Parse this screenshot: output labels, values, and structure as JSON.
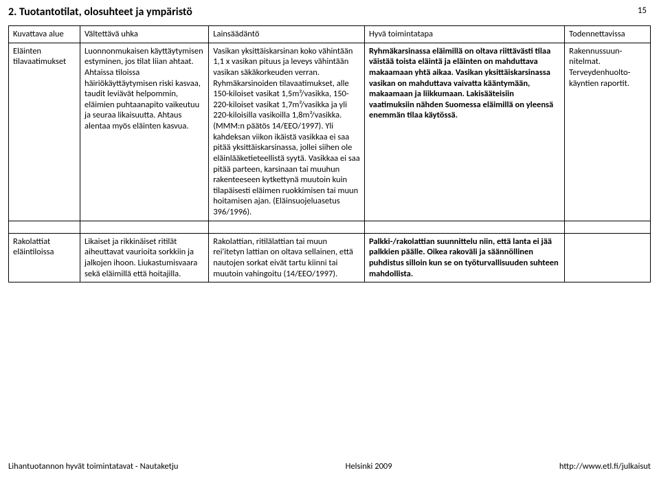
{
  "header": {
    "title": "2. Tuotantotilat, olosuhteet ja ympäristö",
    "page_number": "15"
  },
  "table": {
    "columns": [
      "Kuvattava alue",
      "Vältettävä uhka",
      "Lainsäädäntö",
      "Hyvä toimintatapa",
      "Todennettavissa"
    ],
    "rows": [
      {
        "c0": "Eläinten tilavaatimukset",
        "c1": "Luonnonmukaisen käyttäytymisen estyminen, jos tilat liian ahtaat. Ahtaissa tiloissa häiriökäyttäytymisen riski kasvaa, taudit leviävät helpommin, eläimien puhtaanapito vaikeutuu ja seuraa likaisuutta. Ahtaus alentaa myös eläinten kasvua.",
        "c2": "Vasikan yksittäiskarsinan koko vähintään 1,1 x vasikan pituus ja leveys vähintään vasikan säkäkorkeuden verran. Ryhmäkarsinoiden tilavaatimukset, alle 150-kiloiset vasikat 1,5m²/vasikka, 150-220-kiloiset vasikat 1,7m²/vasikka ja yli 220-kiloisilla vasikoilla 1,8m²/vasikka. (MMM:n päätös 14/EEO/1997). Yli kahdeksan viikon ikäistä vasikkaa ei saa pitää yksittäiskarsinassa, jollei siihen ole eläinlääketieteellistä syytä. Vasikkaa ei saa pitää parteen, karsinaan tai muuhun rakenteeseen kytkettynä muutoin kuin tilapäisesti eläimen ruokkimisen tai muun hoitamisen ajan. (Eläinsuojeluasetus 396/1996).",
        "c3": "Ryhmäkarsinassa eläimillä on oltava riittävästi tilaa väistää toista eläintä ja eläinten on mahduttava makaamaan yhtä aikaa. Vasikan yksittäiskarsinassa vasikan on mahduttava vaivatta kääntymään, makaamaan ja liikkumaan. Lakisääteisiin vaatimuksiin nähden Suomessa eläimillä on yleensä enemmän tilaa käytössä.",
        "c4": "Rakennussuun-nitelmat. Terveydenhuolto-käyntien raportit."
      },
      {
        "c0": "Rakolattiat eläintiloissa",
        "c1": "Likaiset ja rikkinäiset ritilät aiheuttavat vaurioita sorkkiin ja jalkojen ihoon. Liukastumisvaara sekä eläimillä että hoitajilla.",
        "c2": "Rakolattian, ritilälattian tai muun rei'itetyn lattian on oltava sellainen, että nautojen sorkat eivät tartu kiinni tai muutoin vahingoitu (14/EEO/1997).",
        "c3": "Palkki-/rakolattian suunnittelu niin, että lanta ei jää palkkien päälle. Oikea rakoväli ja säännöllinen puhdistus silloin kun se on työturvallisuuden suhteen mahdollista.",
        "c4": ""
      }
    ]
  },
  "footer": {
    "left": "Lihantuotannon hyvät toimintatavat - Nautaketju",
    "center": "Helsinki 2009",
    "right": "http://www.etl.fi/julkaisut"
  }
}
